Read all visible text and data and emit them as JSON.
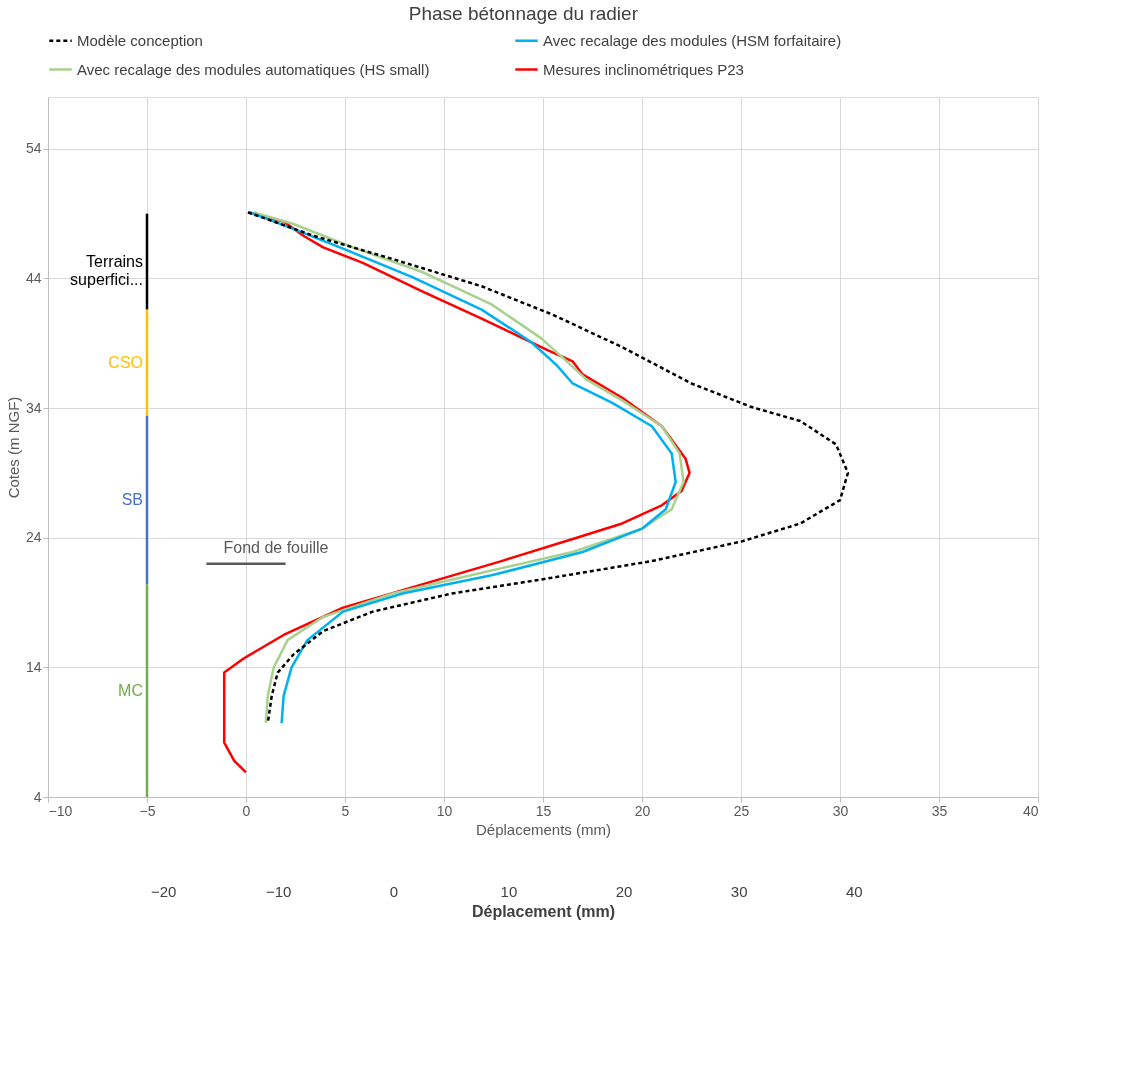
{
  "chart_data": {
    "type": "line",
    "title": "Phase bétonnage du radier",
    "xlabel": "Déplacements (mm)",
    "ylabel": "Cotes (m NGF)",
    "xlim": [
      -10,
      40
    ],
    "xticks": [
      -10,
      -5,
      0,
      5,
      10,
      15,
      20,
      25,
      30,
      35,
      40
    ],
    "ylim": [
      4,
      58
    ],
    "yticks": [
      4,
      14,
      24,
      34,
      44,
      54
    ],
    "x2lim": [
      -30,
      56
    ],
    "x2ticks": [
      -20,
      -10,
      0,
      10,
      20,
      30,
      40
    ],
    "x2label": "Déplacement (mm)",
    "grid": true,
    "legend": "top",
    "marker": "none",
    "series": [
      {
        "name": "Modèle conception",
        "color": "#000000",
        "line_style": "dashed",
        "x": [
          0.1,
          3.4,
          7.4,
          11.9,
          15.5,
          19,
          22.5,
          25.5,
          28,
          29.8,
          30.4,
          30,
          28,
          25,
          20.5,
          15,
          10.4,
          6.4,
          3.9,
          2.4,
          1.6,
          1.3,
          1.1
        ],
        "values": [
          49.1,
          47.3,
          45.5,
          43.4,
          41.2,
          38.7,
          35.9,
          34.1,
          33,
          31.2,
          29,
          26.9,
          25.1,
          23.7,
          22.2,
          20.8,
          19.7,
          18.3,
          16.8,
          15,
          13.6,
          11.8,
          9.7
        ]
      },
      {
        "name": "Avec recalage des modules (HSM forfaitaire)",
        "color": "#00b0f0",
        "line_style": "solid",
        "x": [
          0.2,
          2.1,
          4.9,
          8.4,
          11.9,
          14.4,
          15.7,
          16.5,
          18.5,
          20.5,
          21.5,
          21.7,
          21.2,
          20,
          17,
          12.4,
          7.9,
          4.9,
          3.1,
          2.3,
          1.9,
          1.8
        ],
        "values": [
          49.1,
          48,
          46.3,
          44.1,
          41.6,
          39.1,
          37.3,
          35.9,
          34.4,
          32.6,
          30.5,
          28.3,
          26.2,
          24.7,
          22.9,
          21.1,
          19.7,
          18.3,
          16.1,
          14,
          11.8,
          9.7
        ]
      },
      {
        "name": "Avec recalage des modules automatiques (HS small)",
        "color": "#a9d18e",
        "line_style": "solid",
        "x": [
          0.4,
          2.4,
          5.4,
          8.9,
          12.4,
          14.9,
          16.2,
          17.2,
          19,
          21,
          21.9,
          22.1,
          21.5,
          20,
          16.5,
          11.9,
          7.4,
          3.9,
          2.1,
          1.4,
          1.1,
          1.0
        ],
        "values": [
          49.1,
          48.2,
          46.4,
          44.5,
          42,
          39.4,
          37.6,
          36.2,
          34.6,
          32.6,
          30.5,
          28.3,
          26.2,
          24.7,
          22.9,
          21.3,
          19.7,
          17.9,
          16.1,
          14,
          11.8,
          9.7
        ]
      },
      {
        "name": "Mesures inclinométriques P23",
        "color": "#ff0000",
        "line_style": "solid",
        "x": [
          0.1,
          1.9,
          2.9,
          3.9,
          5.9,
          8.9,
          11.9,
          15.2,
          16.5,
          17,
          19,
          21,
          22.2,
          22.4,
          22,
          21,
          19,
          16.5,
          12.9,
          8.9,
          4.9,
          1.9,
          -0.1,
          -1.1,
          -1.1,
          -1.1,
          -0.6,
          0
        ],
        "values": [
          49.1,
          48.4,
          47.3,
          46.4,
          45.2,
          43,
          40.9,
          38.5,
          37.6,
          36.6,
          34.8,
          32.6,
          30.1,
          29,
          27.6,
          26.5,
          25.1,
          23.9,
          22.2,
          20.4,
          18.6,
          16.5,
          14.7,
          13.6,
          11.8,
          8.2,
          6.8,
          5.9
        ]
      },
      {
        "color": "#000000",
        "line_style": "solid",
        "x": [
          -5,
          -5
        ],
        "values": [
          49,
          41.6
        ]
      },
      {
        "color": "#ffc000",
        "line_style": "solid",
        "x": [
          -5,
          -5
        ],
        "values": [
          41.6,
          33.4
        ]
      },
      {
        "color": "#4472c4",
        "line_style": "solid",
        "x": [
          -5,
          -5
        ],
        "values": [
          33.4,
          20.4
        ]
      },
      {
        "color": "#70ad47",
        "line_style": "solid",
        "x": [
          -5,
          -5
        ],
        "values": [
          20.4,
          4
        ]
      },
      {
        "color": "#595959",
        "line_style": "solid",
        "x": [
          -2,
          2
        ],
        "values": [
          22,
          22
        ]
      }
    ],
    "annotations": [
      "Terrains\nsuperfici...",
      "CSO",
      "SB",
      "MC",
      "Fond de fouille"
    ]
  }
}
